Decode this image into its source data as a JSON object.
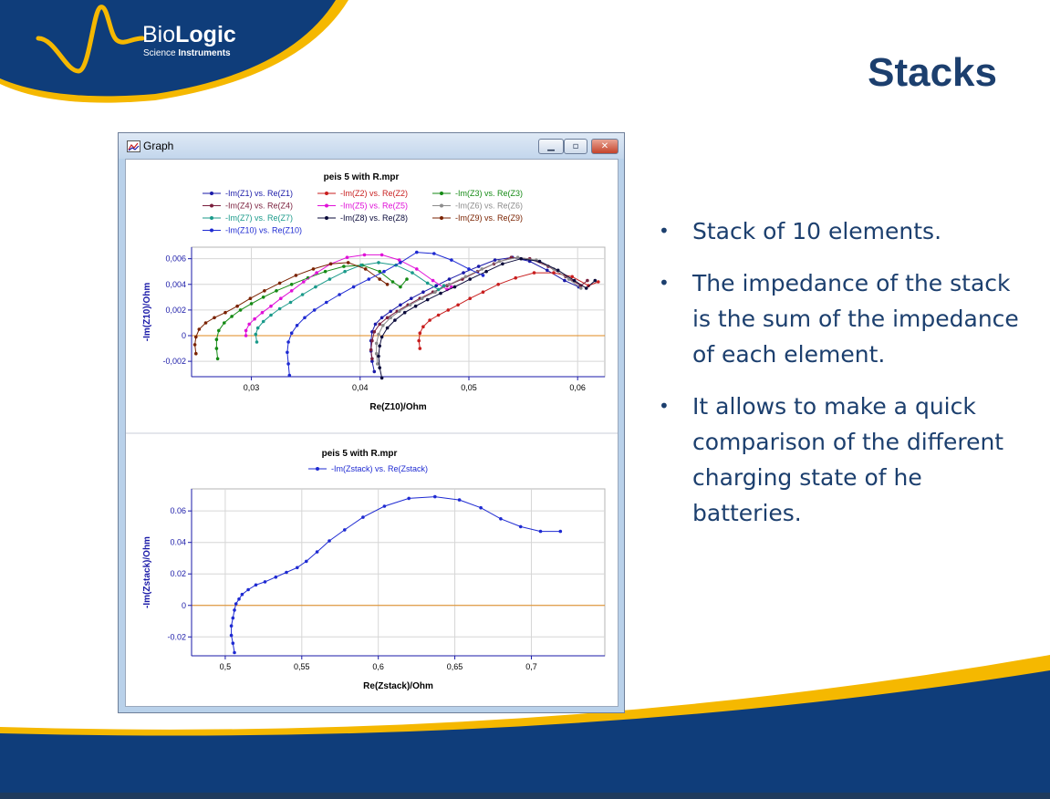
{
  "slide": {
    "title": "Stacks",
    "logo": {
      "brand_light": "Bio",
      "brand_bold": "Logic",
      "sub_light": "Science ",
      "sub_bold": "Instruments"
    },
    "bullets": [
      "Stack of 10 elements.",
      "The impedance of the stack is the sum of the impedance of each element.",
      "It allows to make a quick comparison of the different charging state of he batteries."
    ],
    "colors": {
      "title": "#1c3f6e",
      "navy": "#0f3d7a",
      "gold": "#f5b800"
    }
  },
  "window": {
    "title": "Graph",
    "icon": "graph-icon",
    "controls": {
      "minimize": "minimize-icon",
      "maximize": "maximize-icon",
      "close": "close-icon"
    }
  },
  "chart_data": [
    {
      "type": "line",
      "title": "peis 5 with R.mpr",
      "xlabel": "Re(Z10)/Ohm",
      "ylabel": "-Im(Z10)/Ohm",
      "xlim": [
        0.0245,
        0.0625
      ],
      "ylim": [
        -0.0032,
        0.0069
      ],
      "xticks": [
        "0,03",
        "0,04",
        "0,05",
        "0,06"
      ],
      "xtick_values": [
        0.03,
        0.04,
        0.05,
        0.06
      ],
      "yticks": [
        "-0,002",
        "0",
        "0,002",
        "0,004",
        "0,006"
      ],
      "ytick_values": [
        -0.002,
        0,
        0.002,
        0.004,
        0.006
      ],
      "grid": true,
      "zero_line": true,
      "series": [
        {
          "name": "-Im(Z1) vs. Re(Z1)",
          "color": "#1a1aa8",
          "points": [
            [
              0.0413,
              -0.0028
            ],
            [
              0.0411,
              -0.002
            ],
            [
              0.041,
              -0.0012
            ],
            [
              0.041,
              -0.0004
            ],
            [
              0.0411,
              0.0003
            ],
            [
              0.0414,
              0.0009
            ],
            [
              0.042,
              0.0014
            ],
            [
              0.0428,
              0.0019
            ],
            [
              0.0437,
              0.0024
            ],
            [
              0.0447,
              0.0029
            ],
            [
              0.0458,
              0.0034
            ],
            [
              0.047,
              0.0039
            ],
            [
              0.0482,
              0.0044
            ],
            [
              0.0495,
              0.0049
            ],
            [
              0.0509,
              0.0054
            ],
            [
              0.0524,
              0.0059
            ],
            [
              0.054,
              0.0061
            ],
            [
              0.0556,
              0.0058
            ],
            [
              0.0572,
              0.0051
            ],
            [
              0.0588,
              0.0043
            ],
            [
              0.0601,
              0.0038
            ]
          ]
        },
        {
          "name": "-Im(Z2) vs. Re(Z2)",
          "color": "#c81e1e",
          "points": [
            [
              0.0455,
              -0.001
            ],
            [
              0.0454,
              -0.0004
            ],
            [
              0.0455,
              0.0002
            ],
            [
              0.0458,
              0.0007
            ],
            [
              0.0464,
              0.0012
            ],
            [
              0.0472,
              0.0016
            ],
            [
              0.0481,
              0.002
            ],
            [
              0.049,
              0.0024
            ],
            [
              0.0501,
              0.0029
            ],
            [
              0.0513,
              0.0034
            ],
            [
              0.0527,
              0.004
            ],
            [
              0.0543,
              0.0045
            ],
            [
              0.056,
              0.0049
            ],
            [
              0.0578,
              0.0049
            ],
            [
              0.0595,
              0.0046
            ],
            [
              0.061,
              0.0039
            ],
            [
              0.0619,
              0.0042
            ]
          ]
        },
        {
          "name": "-Im(Z3) vs. Re(Z3)",
          "color": "#148a14",
          "points": [
            [
              0.0269,
              -0.0018
            ],
            [
              0.0268,
              -0.001
            ],
            [
              0.0268,
              -0.0003
            ],
            [
              0.027,
              0.0004
            ],
            [
              0.0275,
              0.001
            ],
            [
              0.0282,
              0.0015
            ],
            [
              0.029,
              0.002
            ],
            [
              0.03,
              0.0025
            ],
            [
              0.0311,
              0.003
            ],
            [
              0.0323,
              0.0035
            ],
            [
              0.0337,
              0.004
            ],
            [
              0.0352,
              0.0045
            ],
            [
              0.0368,
              0.005
            ],
            [
              0.0385,
              0.0054
            ],
            [
              0.0402,
              0.0055
            ],
            [
              0.0418,
              0.005
            ],
            [
              0.043,
              0.0042
            ],
            [
              0.0437,
              0.0038
            ],
            [
              0.0443,
              0.0044
            ]
          ]
        },
        {
          "name": "-Im(Z4) vs. Re(Z4)",
          "color": "#7a1f3d",
          "points": [
            [
              0.0411,
              -0.0018
            ],
            [
              0.041,
              -0.0011
            ],
            [
              0.0411,
              -0.0004
            ],
            [
              0.0413,
              0.0003
            ],
            [
              0.0418,
              0.0009
            ],
            [
              0.0425,
              0.0014
            ],
            [
              0.0434,
              0.0019
            ],
            [
              0.0444,
              0.0024
            ],
            [
              0.0455,
              0.0029
            ],
            [
              0.0467,
              0.0034
            ],
            [
              0.048,
              0.0039
            ],
            [
              0.0494,
              0.0044
            ],
            [
              0.0508,
              0.005
            ],
            [
              0.0523,
              0.0056
            ],
            [
              0.0539,
              0.0061
            ],
            [
              0.0556,
              0.006
            ],
            [
              0.0573,
              0.0054
            ],
            [
              0.0589,
              0.0046
            ],
            [
              0.0603,
              0.0039
            ],
            [
              0.0609,
              0.0043
            ]
          ]
        },
        {
          "name": "-Im(Z5) vs. Re(Z5)",
          "color": "#e011d8",
          "points": [
            [
              0.0295,
              0.0
            ],
            [
              0.0295,
              0.0004
            ],
            [
              0.0298,
              0.0009
            ],
            [
              0.0303,
              0.0013
            ],
            [
              0.031,
              0.0018
            ],
            [
              0.0318,
              0.0023
            ],
            [
              0.0327,
              0.0029
            ],
            [
              0.0337,
              0.0035
            ],
            [
              0.0348,
              0.0042
            ],
            [
              0.036,
              0.0049
            ],
            [
              0.0373,
              0.0056
            ],
            [
              0.0388,
              0.0061
            ],
            [
              0.0404,
              0.0063
            ],
            [
              0.042,
              0.0063
            ],
            [
              0.0436,
              0.0059
            ],
            [
              0.0452,
              0.0052
            ],
            [
              0.0467,
              0.0043
            ],
            [
              0.048,
              0.0036
            ],
            [
              0.0484,
              0.0038
            ]
          ]
        },
        {
          "name": "-Im(Z6) vs. Re(Z6)",
          "color": "#8c8c8c",
          "points": [
            [
              0.0416,
              -0.0022
            ],
            [
              0.0415,
              -0.0014
            ],
            [
              0.0415,
              -0.0006
            ],
            [
              0.0417,
              0.0001
            ],
            [
              0.0421,
              0.0008
            ],
            [
              0.0428,
              0.0014
            ],
            [
              0.0436,
              0.0019
            ],
            [
              0.0446,
              0.0024
            ],
            [
              0.0457,
              0.0029
            ],
            [
              0.0469,
              0.0034
            ],
            [
              0.0482,
              0.004
            ],
            [
              0.0497,
              0.0046
            ],
            [
              0.0512,
              0.0052
            ],
            [
              0.0528,
              0.0058
            ],
            [
              0.0545,
              0.0061
            ],
            [
              0.0562,
              0.0059
            ],
            [
              0.0578,
              0.0052
            ],
            [
              0.0592,
              0.0044
            ],
            [
              0.0603,
              0.0037
            ]
          ]
        },
        {
          "name": "-Im(Z7) vs. Re(Z7)",
          "color": "#1a9a8a",
          "points": [
            [
              0.0305,
              -0.0005
            ],
            [
              0.0304,
              0.0001
            ],
            [
              0.0306,
              0.0006
            ],
            [
              0.0311,
              0.0011
            ],
            [
              0.0318,
              0.0016
            ],
            [
              0.0326,
              0.0021
            ],
            [
              0.0336,
              0.0026
            ],
            [
              0.0347,
              0.0032
            ],
            [
              0.0359,
              0.0038
            ],
            [
              0.0372,
              0.0044
            ],
            [
              0.0386,
              0.005
            ],
            [
              0.0401,
              0.0055
            ],
            [
              0.0417,
              0.0057
            ],
            [
              0.0433,
              0.0055
            ],
            [
              0.0448,
              0.0049
            ],
            [
              0.0462,
              0.0041
            ],
            [
              0.0472,
              0.0036
            ],
            [
              0.0477,
              0.0039
            ]
          ]
        },
        {
          "name": "-Im(Z8) vs. Re(Z8)",
          "color": "#0a0a3a",
          "points": [
            [
              0.042,
              -0.0033
            ],
            [
              0.0418,
              -0.0025
            ],
            [
              0.0417,
              -0.0016
            ],
            [
              0.0418,
              -0.0008
            ],
            [
              0.042,
              -0.0001
            ],
            [
              0.0425,
              0.0006
            ],
            [
              0.0432,
              0.0012
            ],
            [
              0.0441,
              0.0018
            ],
            [
              0.0451,
              0.0023
            ],
            [
              0.0462,
              0.0028
            ],
            [
              0.0474,
              0.0033
            ],
            [
              0.0487,
              0.0038
            ],
            [
              0.0501,
              0.0044
            ],
            [
              0.0516,
              0.005
            ],
            [
              0.0531,
              0.0056
            ],
            [
              0.0548,
              0.006
            ],
            [
              0.0565,
              0.0058
            ],
            [
              0.0582,
              0.0051
            ],
            [
              0.0597,
              0.0043
            ],
            [
              0.0608,
              0.0037
            ],
            [
              0.0616,
              0.0043
            ]
          ]
        },
        {
          "name": "-Im(Z9) vs. Re(Z9)",
          "color": "#7a2200",
          "points": [
            [
              0.0249,
              -0.0014
            ],
            [
              0.0248,
              -0.0007
            ],
            [
              0.0249,
              -0.0001
            ],
            [
              0.0252,
              0.0005
            ],
            [
              0.0258,
              0.001
            ],
            [
              0.0266,
              0.0014
            ],
            [
              0.0276,
              0.0018
            ],
            [
              0.0287,
              0.0023
            ],
            [
              0.0299,
              0.0029
            ],
            [
              0.0312,
              0.0035
            ],
            [
              0.0326,
              0.0041
            ],
            [
              0.0341,
              0.0047
            ],
            [
              0.0357,
              0.0052
            ],
            [
              0.0373,
              0.0056
            ],
            [
              0.0389,
              0.0057
            ],
            [
              0.0405,
              0.0052
            ],
            [
              0.0418,
              0.0044
            ],
            [
              0.0425,
              0.004
            ]
          ]
        },
        {
          "name": "-Im(Z10) vs. Re(Z10)",
          "color": "#1e2ad2",
          "points": [
            [
              0.0335,
              -0.0031
            ],
            [
              0.0334,
              -0.0022
            ],
            [
              0.0333,
              -0.0013
            ],
            [
              0.0334,
              -0.0005
            ],
            [
              0.0337,
              0.0002
            ],
            [
              0.0342,
              0.0008
            ],
            [
              0.0349,
              0.0014
            ],
            [
              0.0358,
              0.002
            ],
            [
              0.0369,
              0.0026
            ],
            [
              0.0381,
              0.0032
            ],
            [
              0.0394,
              0.0038
            ],
            [
              0.0408,
              0.0044
            ],
            [
              0.0422,
              0.005
            ],
            [
              0.0437,
              0.0057
            ],
            [
              0.0452,
              0.0065
            ],
            [
              0.0468,
              0.0064
            ],
            [
              0.0484,
              0.0059
            ],
            [
              0.05,
              0.0052
            ],
            [
              0.0513,
              0.0047
            ]
          ]
        }
      ]
    },
    {
      "type": "line",
      "title": "peis 5 with R.mpr",
      "xlabel": "Re(Zstack)/Ohm",
      "ylabel": "-Im(Zstack)/Ohm",
      "xlim": [
        0.478,
        0.748
      ],
      "ylim": [
        -0.032,
        0.074
      ],
      "xticks": [
        "0,5",
        "0,55",
        "0,6",
        "0,65",
        "0,7"
      ],
      "xtick_values": [
        0.5,
        0.55,
        0.6,
        0.65,
        0.7
      ],
      "yticks": [
        "-0.02",
        "0",
        "0.02",
        "0.04",
        "0.06"
      ],
      "ytick_values": [
        -0.02,
        0,
        0.02,
        0.04,
        0.06
      ],
      "grid": true,
      "zero_line": true,
      "series": [
        {
          "name": "-Im(Zstack) vs. Re(Zstack)",
          "color": "#1e2ad2",
          "points": [
            [
              0.506,
              -0.03
            ],
            [
              0.505,
              -0.024
            ],
            [
              0.504,
              -0.019
            ],
            [
              0.504,
              -0.013
            ],
            [
              0.505,
              -0.008
            ],
            [
              0.506,
              -0.003
            ],
            [
              0.507,
              0.001
            ],
            [
              0.509,
              0.004
            ],
            [
              0.511,
              0.007
            ],
            [
              0.515,
              0.01
            ],
            [
              0.52,
              0.013
            ],
            [
              0.526,
              0.015
            ],
            [
              0.533,
              0.018
            ],
            [
              0.54,
              0.021
            ],
            [
              0.547,
              0.024
            ],
            [
              0.553,
              0.028
            ],
            [
              0.56,
              0.034
            ],
            [
              0.568,
              0.041
            ],
            [
              0.578,
              0.048
            ],
            [
              0.59,
              0.056
            ],
            [
              0.604,
              0.063
            ],
            [
              0.62,
              0.068
            ],
            [
              0.637,
              0.069
            ],
            [
              0.653,
              0.067
            ],
            [
              0.667,
              0.062
            ],
            [
              0.68,
              0.055
            ],
            [
              0.693,
              0.05
            ],
            [
              0.706,
              0.047
            ],
            [
              0.719,
              0.047
            ]
          ]
        }
      ]
    }
  ]
}
